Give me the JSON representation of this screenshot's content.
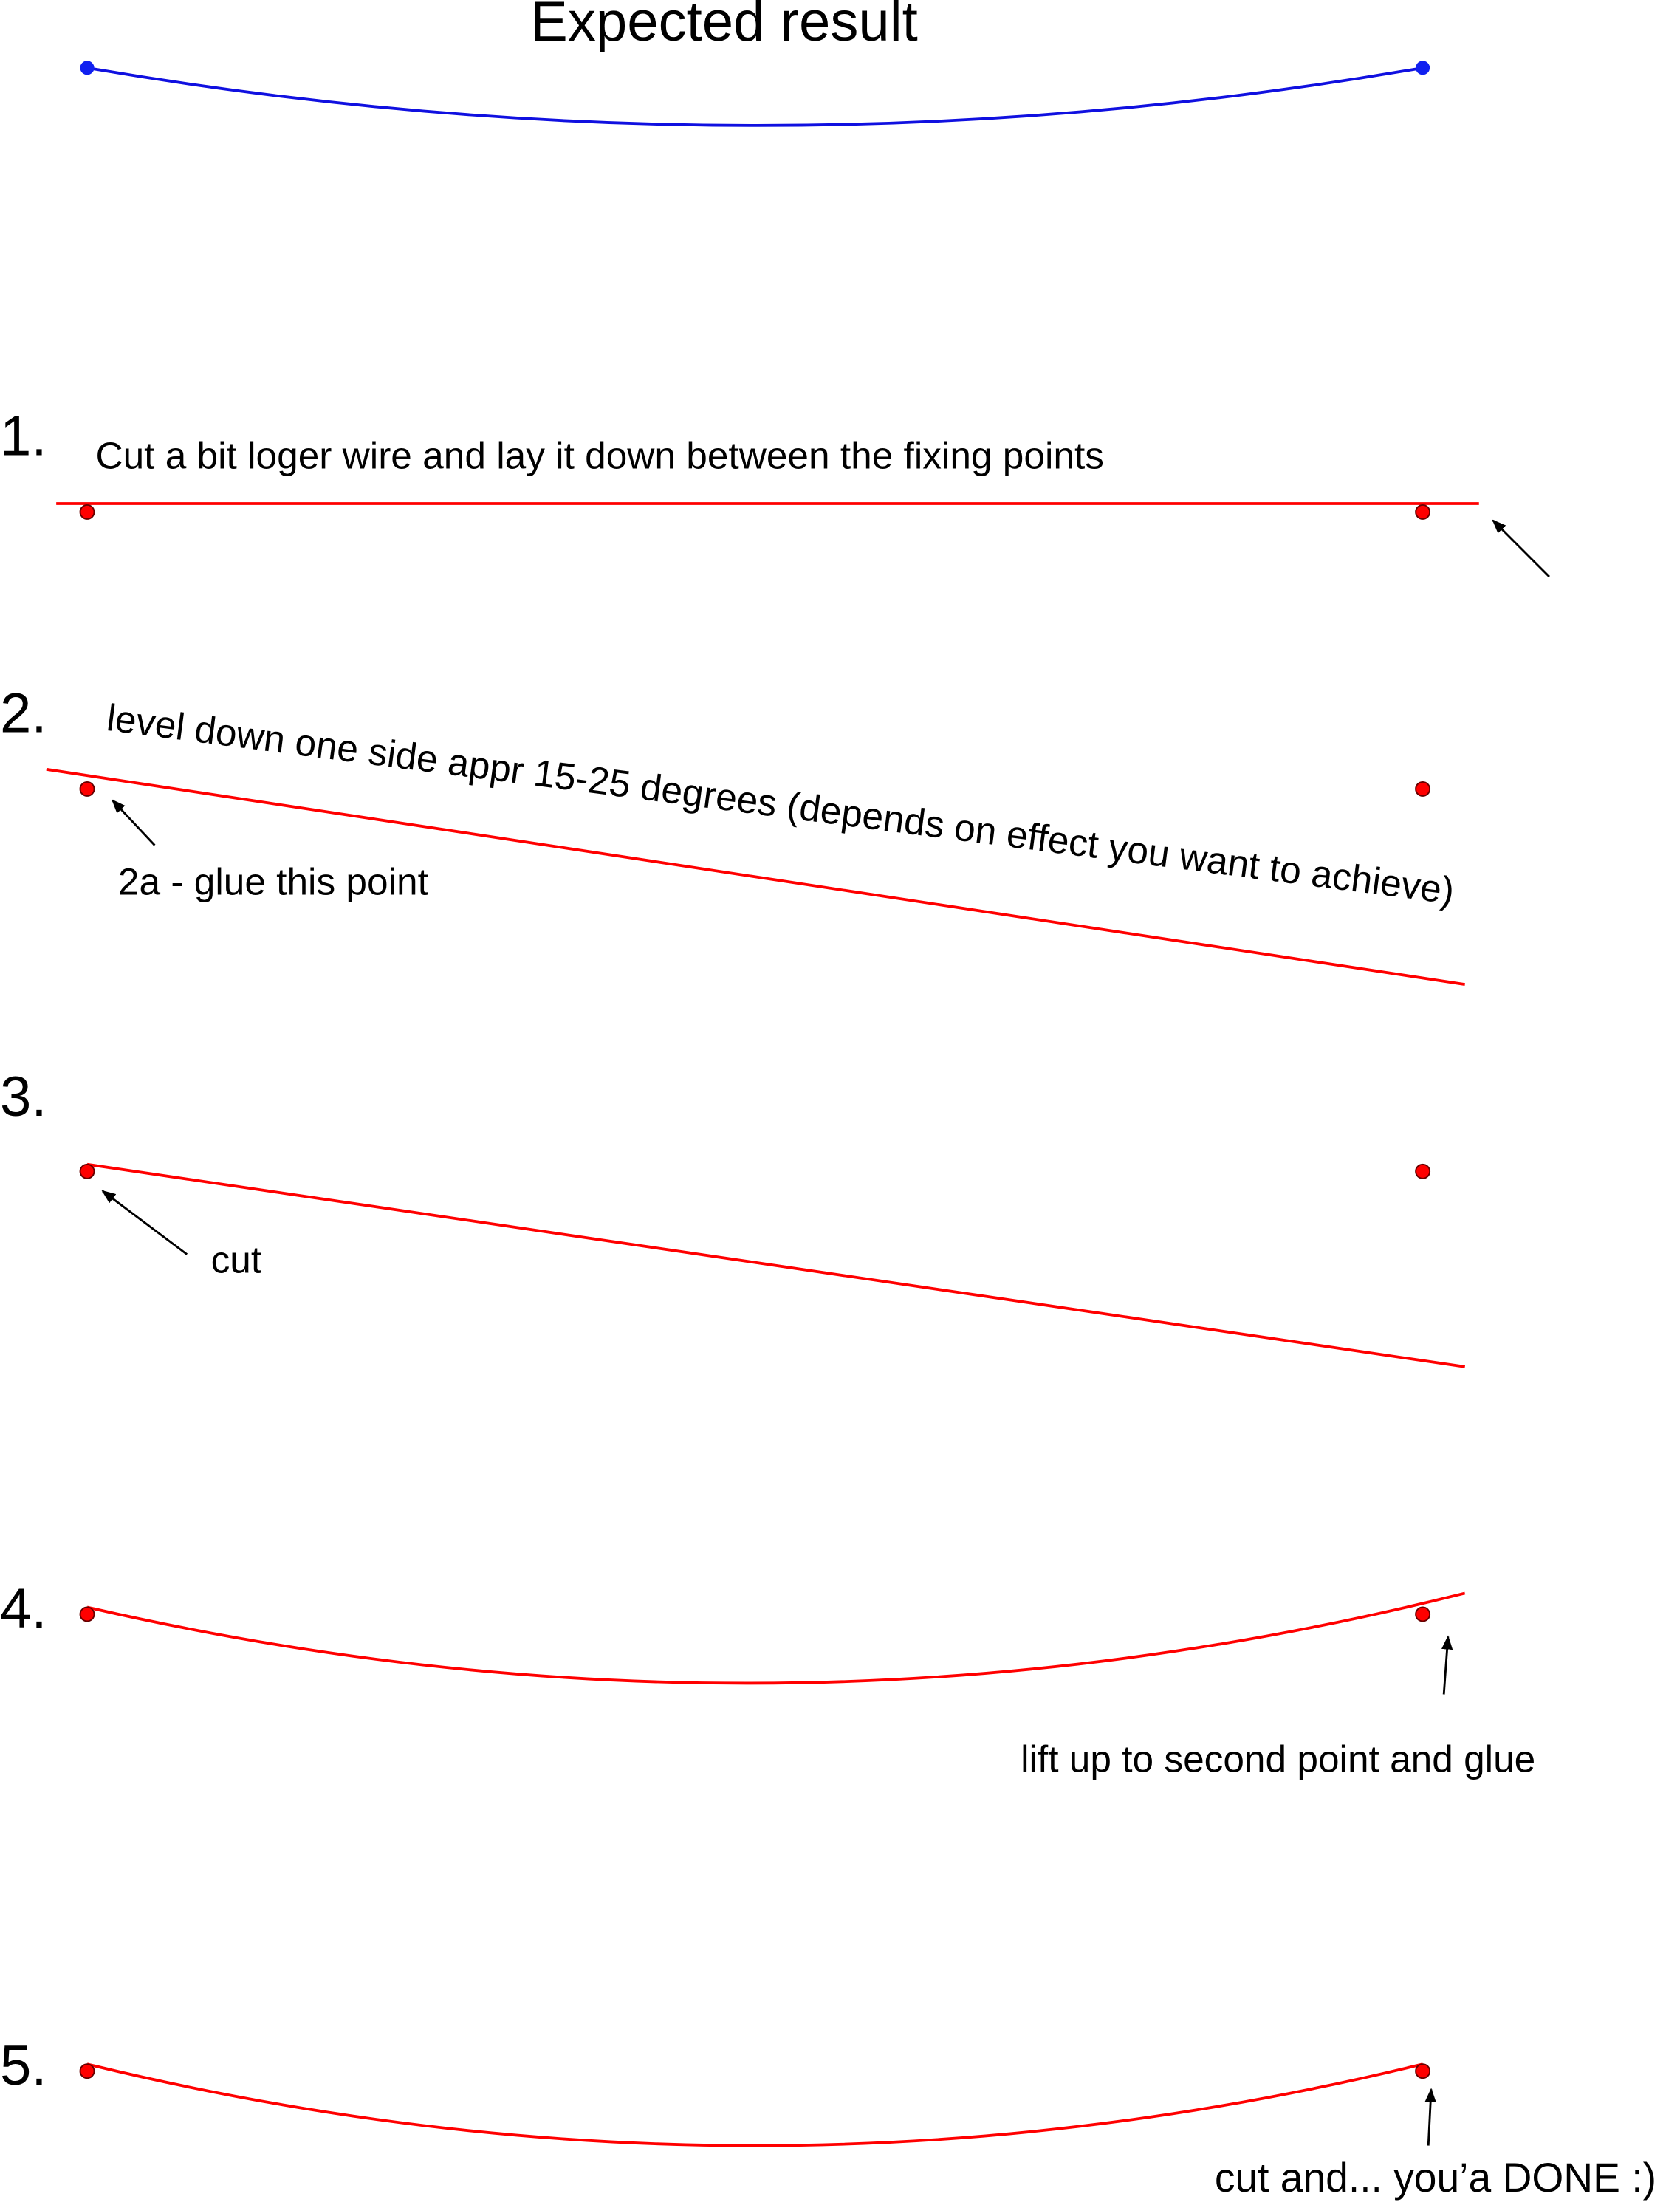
{
  "header": {
    "title": "Expected result"
  },
  "steps": [
    {
      "number": "1.",
      "text": "Cut a bit loger wire and lay it down between the fixing points"
    },
    {
      "number": "2.",
      "text": "level down one side appr 15-25 degrees (depends on effect you want to achieve)",
      "note": "2a - glue this point"
    },
    {
      "number": "3.",
      "note": "cut"
    },
    {
      "number": "4.",
      "note": "lift up to second point and glue"
    },
    {
      "number": "5.",
      "note": "cut and... you’a DONE :)"
    }
  ]
}
